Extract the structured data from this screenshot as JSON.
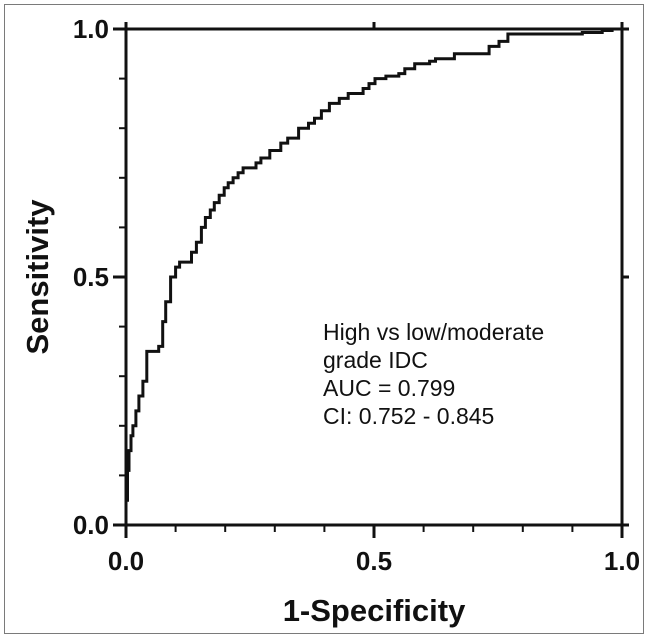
{
  "chart_data": {
    "type": "line",
    "title": "",
    "xlabel": "1-Specificity",
    "ylabel": "Sensitivity",
    "xlim": [
      0,
      1
    ],
    "ylim": [
      0,
      1
    ],
    "x_ticks": [
      "0.0",
      "0.5",
      "1.0"
    ],
    "y_ticks": [
      "0.0",
      "0.5",
      "1.0"
    ],
    "grid": false,
    "annotation": [
      "High vs low/moderate",
      "grade IDC",
      "AUC = 0.799",
      "CI: 0.752 - 0.845"
    ],
    "series": [
      {
        "x": [
          0,
          0,
          0.003,
          0.003,
          0.006,
          0.006,
          0.01,
          0.01,
          0.014,
          0.014,
          0.02,
          0.02,
          0.026,
          0.026,
          0.034,
          0.034,
          0.042,
          0.042,
          0.066,
          0.066,
          0.074,
          0.074,
          0.08,
          0.08,
          0.09,
          0.09,
          0.1,
          0.1,
          0.108,
          0.108,
          0.132,
          0.132,
          0.142,
          0.142,
          0.152,
          0.152,
          0.16,
          0.16,
          0.17,
          0.17,
          0.178,
          0.178,
          0.188,
          0.188,
          0.198,
          0.198,
          0.206,
          0.206,
          0.216,
          0.216,
          0.226,
          0.226,
          0.236,
          0.236,
          0.262,
          0.262,
          0.272,
          0.272,
          0.29,
          0.29,
          0.312,
          0.312,
          0.326,
          0.326,
          0.348,
          0.348,
          0.368,
          0.368,
          0.38,
          0.38,
          0.394,
          0.394,
          0.41,
          0.41,
          0.43,
          0.43,
          0.448,
          0.448,
          0.478,
          0.478,
          0.49,
          0.49,
          0.502,
          0.502,
          0.524,
          0.524,
          0.55,
          0.55,
          0.562,
          0.562,
          0.582,
          0.582,
          0.612,
          0.612,
          0.624,
          0.624,
          0.662,
          0.662,
          0.732,
          0.732,
          0.752,
          0.752,
          0.77,
          0.77,
          0.92,
          0.92,
          0.96,
          0.96,
          0.98,
          0.98,
          1.0
        ],
        "y": [
          0,
          0.05,
          0.05,
          0.11,
          0.11,
          0.15,
          0.15,
          0.18,
          0.18,
          0.2,
          0.2,
          0.23,
          0.23,
          0.26,
          0.26,
          0.29,
          0.29,
          0.35,
          0.35,
          0.36,
          0.36,
          0.41,
          0.41,
          0.45,
          0.45,
          0.5,
          0.5,
          0.52,
          0.52,
          0.53,
          0.53,
          0.55,
          0.55,
          0.57,
          0.57,
          0.6,
          0.6,
          0.62,
          0.62,
          0.635,
          0.635,
          0.65,
          0.65,
          0.665,
          0.665,
          0.68,
          0.68,
          0.69,
          0.69,
          0.7,
          0.7,
          0.71,
          0.71,
          0.72,
          0.72,
          0.73,
          0.73,
          0.74,
          0.74,
          0.755,
          0.755,
          0.77,
          0.77,
          0.78,
          0.78,
          0.8,
          0.8,
          0.81,
          0.81,
          0.82,
          0.82,
          0.835,
          0.835,
          0.85,
          0.85,
          0.86,
          0.86,
          0.87,
          0.87,
          0.88,
          0.88,
          0.89,
          0.89,
          0.9,
          0.9,
          0.905,
          0.905,
          0.91,
          0.91,
          0.92,
          0.92,
          0.93,
          0.93,
          0.935,
          0.935,
          0.94,
          0.94,
          0.95,
          0.95,
          0.965,
          0.965,
          0.975,
          0.975,
          0.99,
          0.99,
          0.993,
          0.993,
          0.997,
          0.997,
          1.0,
          1.0
        ]
      }
    ]
  }
}
